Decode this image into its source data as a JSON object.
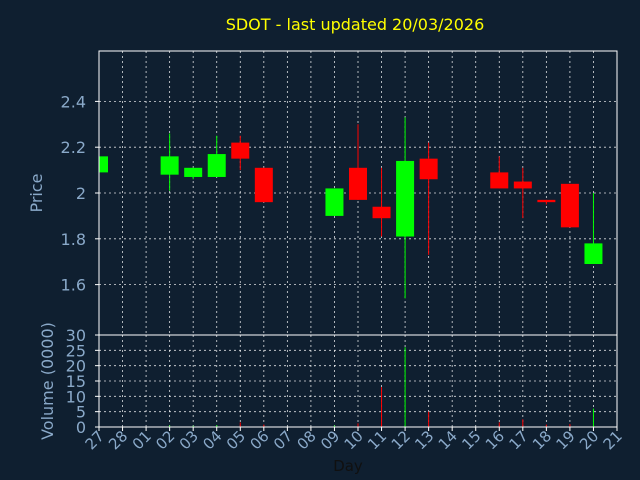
{
  "chart_data": [
    {
      "type": "candlestick",
      "title": "SDOT - last updated 20/03/2026",
      "ylabel": "Price",
      "ylim": [
        1.38,
        2.62
      ],
      "yticks": [
        "1.6",
        "1.8",
        "2",
        "2.2",
        "2.4"
      ],
      "ytick_values": [
        1.6,
        1.8,
        2.0,
        2.2,
        2.4
      ],
      "grid": true,
      "colors": {
        "up": "#00ff00",
        "down": "#ff0000",
        "background": "#0f1f30",
        "grid": "#ffffff",
        "text": "#8aa9c9",
        "title": "#ffff00"
      },
      "x": [
        "27",
        "28",
        "01",
        "02",
        "03",
        "04",
        "05",
        "06",
        "07",
        "08",
        "09",
        "10",
        "11",
        "12",
        "13",
        "14",
        "15",
        "16",
        "17",
        "18",
        "19",
        "20",
        "21"
      ],
      "candles": [
        {
          "x": "27",
          "open": 2.09,
          "high": 2.16,
          "low": 2.09,
          "close": 2.16
        },
        {
          "x": "02",
          "open": 2.08,
          "high": 2.26,
          "low": 2.01,
          "close": 2.16
        },
        {
          "x": "03",
          "open": 2.07,
          "high": 2.11,
          "low": 2.06,
          "close": 2.11
        },
        {
          "x": "04",
          "open": 2.07,
          "high": 2.25,
          "low": 2.07,
          "close": 2.17
        },
        {
          "x": "05",
          "open": 2.22,
          "high": 2.25,
          "low": 2.1,
          "close": 2.15
        },
        {
          "x": "06",
          "open": 2.11,
          "high": 2.11,
          "low": 1.96,
          "close": 1.96
        },
        {
          "x": "09",
          "open": 1.9,
          "high": 2.02,
          "low": 1.9,
          "close": 2.02
        },
        {
          "x": "10",
          "open": 2.11,
          "high": 2.3,
          "low": 1.97,
          "close": 1.97
        },
        {
          "x": "11",
          "open": 1.94,
          "high": 2.11,
          "low": 1.81,
          "close": 1.89
        },
        {
          "x": "12",
          "open": 1.81,
          "high": 2.33,
          "low": 1.54,
          "close": 2.14
        },
        {
          "x": "13",
          "open": 2.15,
          "high": 2.22,
          "low": 1.73,
          "close": 2.06
        },
        {
          "x": "16",
          "open": 2.09,
          "high": 2.16,
          "low": 2.02,
          "close": 2.02
        },
        {
          "x": "17",
          "open": 2.05,
          "high": 2.11,
          "low": 1.89,
          "close": 2.02
        },
        {
          "x": "18",
          "open": 1.97,
          "high": 1.97,
          "low": 1.95,
          "close": 1.96
        },
        {
          "x": "19",
          "open": 2.04,
          "high": 2.04,
          "low": 1.85,
          "close": 1.85
        },
        {
          "x": "20",
          "open": 1.69,
          "high": 2.0,
          "low": 1.69,
          "close": 1.78
        }
      ]
    },
    {
      "type": "bar",
      "ylabel": "Volume (0000)",
      "xlabel": "Day",
      "ylim": [
        0,
        30
      ],
      "yticks": [
        "0",
        "5",
        "10",
        "15",
        "20",
        "25",
        "30"
      ],
      "ytick_values": [
        0,
        5,
        10,
        15,
        20,
        25,
        30
      ],
      "grid": true,
      "x": [
        "27",
        "28",
        "01",
        "02",
        "03",
        "04",
        "05",
        "06",
        "07",
        "08",
        "09",
        "10",
        "11",
        "12",
        "13",
        "14",
        "15",
        "16",
        "17",
        "18",
        "19",
        "20",
        "21"
      ],
      "bars": [
        {
          "x": "27",
          "value": 0.3,
          "color": "#00ff00"
        },
        {
          "x": "02",
          "value": 0.5,
          "color": "#00ff00"
        },
        {
          "x": "03",
          "value": 0.4,
          "color": "#00ff00"
        },
        {
          "x": "04",
          "value": 0.6,
          "color": "#00ff00"
        },
        {
          "x": "05",
          "value": 1.5,
          "color": "#ff0000"
        },
        {
          "x": "06",
          "value": 0.8,
          "color": "#ff0000"
        },
        {
          "x": "09",
          "value": 0.5,
          "color": "#00ff00"
        },
        {
          "x": "10",
          "value": 1.2,
          "color": "#ff0000"
        },
        {
          "x": "11",
          "value": 13,
          "color": "#ff0000"
        },
        {
          "x": "12",
          "value": 26,
          "color": "#00ff00"
        },
        {
          "x": "13",
          "value": 5,
          "color": "#ff0000"
        },
        {
          "x": "16",
          "value": 1.5,
          "color": "#ff0000"
        },
        {
          "x": "17",
          "value": 2.5,
          "color": "#ff0000"
        },
        {
          "x": "18",
          "value": 0.8,
          "color": "#ff0000"
        },
        {
          "x": "19",
          "value": 1,
          "color": "#ff0000"
        },
        {
          "x": "20",
          "value": 6,
          "color": "#00ff00"
        }
      ]
    }
  ]
}
